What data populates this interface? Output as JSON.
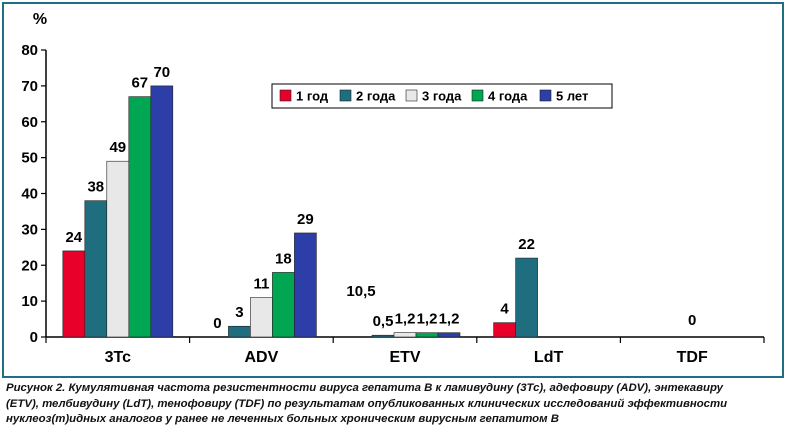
{
  "chart_data": {
    "type": "bar",
    "ylabel": "%",
    "ylim": [
      0,
      80
    ],
    "yticks": [
      "0",
      "10",
      "20",
      "30",
      "40",
      "50",
      "60",
      "70",
      "80"
    ],
    "grid": false,
    "legend_position": "top-right",
    "categories": [
      "3Tc",
      "ADV",
      "ETV",
      "LdT",
      "TDF"
    ],
    "series": [
      {
        "name": "1 год",
        "color": "#e8002b",
        "values": [
          24,
          0,
          0,
          4,
          0
        ],
        "labels": [
          "24",
          "0",
          "",
          "4",
          ""
        ]
      },
      {
        "name": "2 года",
        "color": "#1f6e80",
        "values": [
          38,
          3,
          0.5,
          22,
          null
        ],
        "labels": [
          "38",
          "3",
          "0,5",
          "22",
          ""
        ]
      },
      {
        "name": "3 года",
        "color": "#e8e8e8",
        "values": [
          49,
          11,
          1.2,
          null,
          null
        ],
        "labels": [
          "49",
          "11",
          "1,2",
          "",
          ""
        ]
      },
      {
        "name": "4 года",
        "color": "#00a651",
        "values": [
          67,
          18,
          1.2,
          null,
          null
        ],
        "labels": [
          "67",
          "18",
          "1,2",
          "",
          ""
        ]
      },
      {
        "name": "5 лет",
        "color": "#2e3ea8",
        "values": [
          70,
          29,
          1.2,
          null,
          null
        ],
        "labels": [
          "70",
          "29",
          "1,2",
          "",
          ""
        ]
      }
    ],
    "annotations": [
      {
        "text": "0",
        "category": "TDF"
      },
      {
        "text": "10,5",
        "category": "ETV"
      }
    ]
  },
  "caption": {
    "line1": "Рисунок 2. Кумулятивная частота резистентности вируса гепатита В к ламивудину (3Tc), адефовиру (ADV), энтекавиру",
    "line2": "(ETV), телбивудину (LdT), тенофовиру (TDF) по результатам опубликованных клинических исследований эффективности",
    "line3": "нуклеоз(т)идных аналогов у ранее не леченных больных хроническим вирусным гепатитом В"
  }
}
